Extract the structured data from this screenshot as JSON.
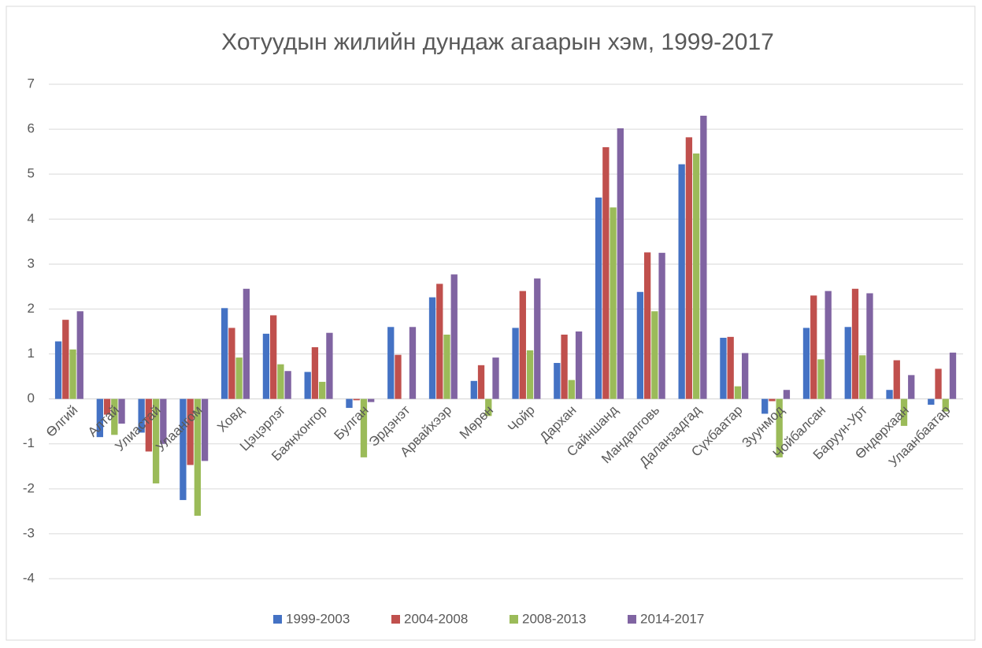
{
  "chart_data": {
    "type": "bar",
    "title": "Хотуудын жилийн дундаж агаарын хэм, 1999-2017",
    "categories": [
      "Өлгий",
      "Алтай",
      "Улиастай",
      "Улаангом",
      "Ховд",
      "Цэцэрлэг",
      "Баянхонгор",
      "Булган",
      "Эрдэнэт",
      "Арвайхээр",
      "Мөрөн",
      "Чойр",
      "Дархан",
      "Сайншанд",
      "Мандалговь",
      "Даланзадгад",
      "Сүхбаатар",
      "Зуунмод",
      "Чойбалсан",
      "Баруун-Урт",
      "Өндөрхаан",
      "Улаанбаатар"
    ],
    "series": [
      {
        "name": "1999-2003",
        "color": "#4472c4",
        "values": [
          1.28,
          -0.85,
          -0.75,
          -2.25,
          2.02,
          1.45,
          0.6,
          -0.2,
          1.6,
          2.26,
          0.4,
          1.58,
          0.8,
          4.48,
          2.38,
          5.22,
          1.36,
          -0.33,
          1.58,
          1.6,
          0.2,
          -0.13
        ]
      },
      {
        "name": "2004-2008",
        "color": "#c0504d",
        "values": [
          1.76,
          -0.35,
          -1.17,
          -1.47,
          1.58,
          1.86,
          1.15,
          -0.03,
          0.98,
          2.56,
          0.75,
          2.4,
          1.43,
          5.6,
          3.26,
          5.82,
          1.38,
          -0.05,
          2.3,
          2.45,
          0.86,
          0.67
        ]
      },
      {
        "name": "2008-2013",
        "color": "#9bbb59",
        "values": [
          1.1,
          -0.8,
          -1.88,
          -2.6,
          0.92,
          0.77,
          0.38,
          -1.3,
          0.0,
          1.43,
          -0.38,
          1.08,
          0.42,
          4.26,
          1.95,
          5.46,
          0.28,
          -1.3,
          0.88,
          0.97,
          -0.6,
          -0.28
        ]
      },
      {
        "name": "2014-2017",
        "color": "#8064a2",
        "values": [
          1.95,
          -0.55,
          -1.0,
          -1.38,
          2.45,
          0.62,
          1.47,
          -0.07,
          1.6,
          2.77,
          0.92,
          2.68,
          1.5,
          6.02,
          3.25,
          6.3,
          1.02,
          0.2,
          2.4,
          2.35,
          0.53,
          1.03
        ]
      }
    ],
    "ylim": [
      -4,
      7
    ],
    "yticks": [
      -4,
      -3,
      -2,
      -1,
      0,
      1,
      2,
      3,
      4,
      5,
      6,
      7
    ],
    "grid": true,
    "legend": "bottom"
  }
}
